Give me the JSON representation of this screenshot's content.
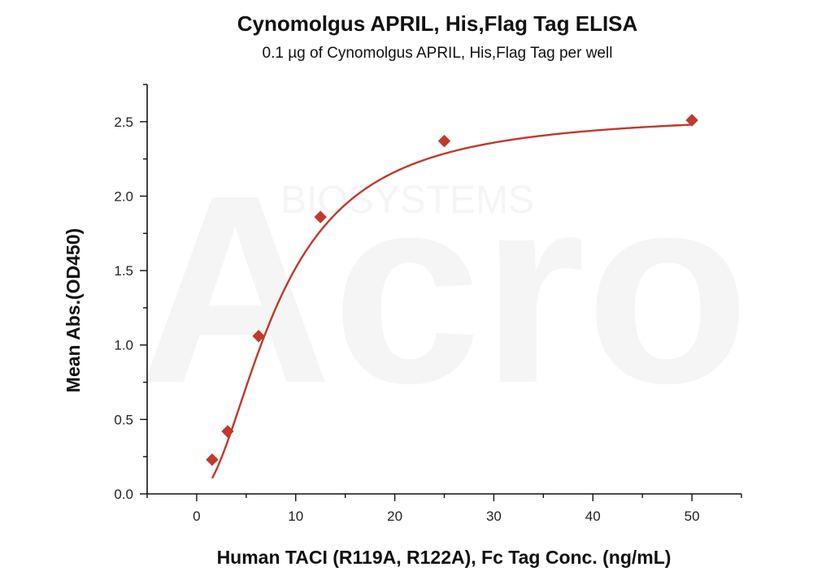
{
  "chart_data": {
    "type": "scatter",
    "title": "Cynomolgus APRIL, His,Flag Tag ELISA",
    "subtitle": "0.1 µg of Cynomolgus APRIL, His,Flag Tag per well",
    "xlabel": "Human TACI (R119A, R122A), Fc Tag Conc. (ng/mL)",
    "ylabel": "Mean Abs.(OD450)",
    "xlim": [
      -5,
      55
    ],
    "ylim": [
      0,
      2.75
    ],
    "x_ticks": [
      0,
      10,
      20,
      30,
      40,
      50
    ],
    "y_ticks": [
      0.0,
      0.5,
      1.0,
      1.5,
      2.0,
      2.5
    ],
    "x_tick_labels": [
      "0",
      "10",
      "20",
      "30",
      "40",
      "50"
    ],
    "y_tick_labels": [
      "0.0",
      "0.5",
      "1.0",
      "1.5",
      "2.0",
      "2.5"
    ],
    "grid": false,
    "series": [
      {
        "points": [
          {
            "x": 1.5625,
            "y": 0.23
          },
          {
            "x": 3.125,
            "y": 0.42
          },
          {
            "x": 6.25,
            "y": 1.06
          },
          {
            "x": 12.5,
            "y": 1.86
          },
          {
            "x": 25,
            "y": 2.37
          },
          {
            "x": 50,
            "y": 2.51
          }
        ],
        "marker": "diamond",
        "fit": "4-parameter logistic",
        "color": "#c0392b"
      }
    ]
  },
  "watermark": {
    "logo": "Acro",
    "text": "BIOSYSTEMS"
  },
  "colors": {
    "series": "#c0392b",
    "axis": "#111111"
  }
}
